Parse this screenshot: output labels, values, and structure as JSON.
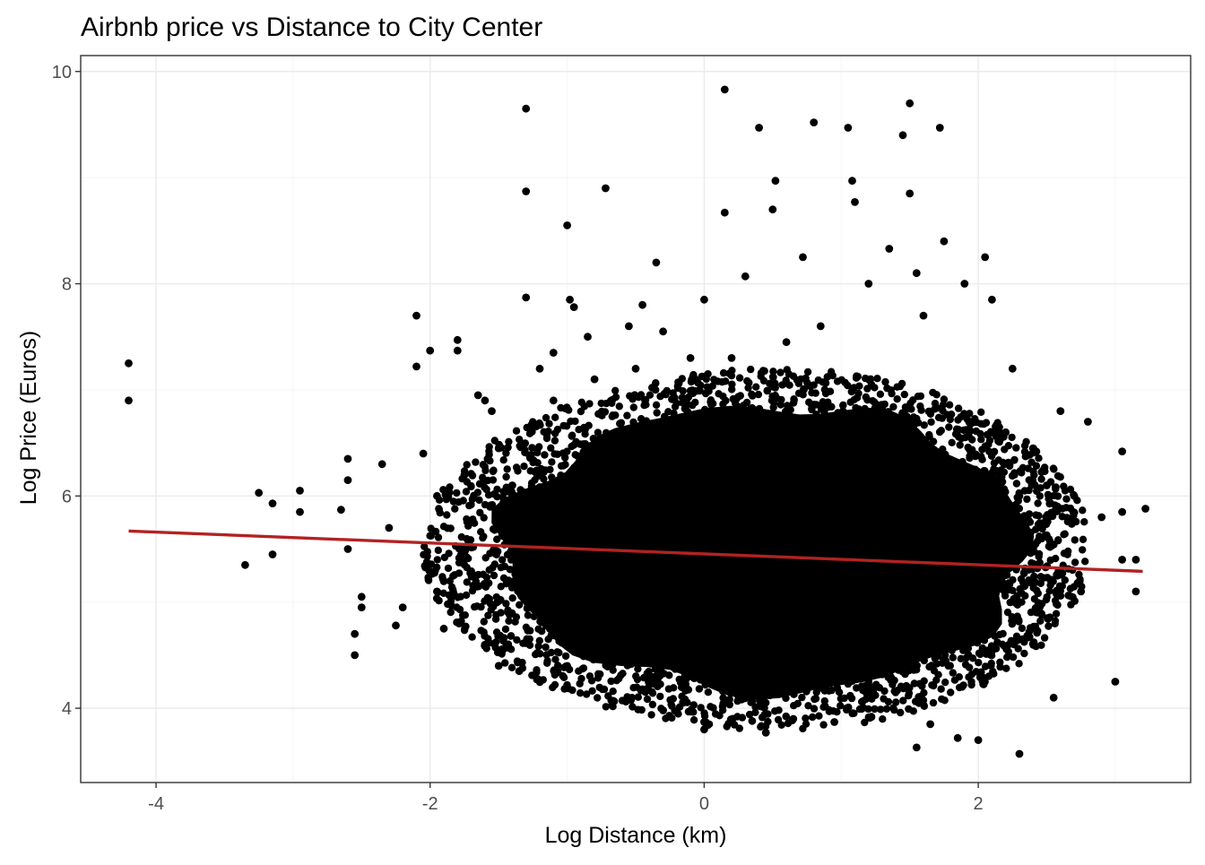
{
  "chart_data": {
    "type": "scatter",
    "title": "Airbnb price vs Distance to City Center",
    "xlabel": "Log Distance (km)",
    "ylabel": "Log Price (Euros)",
    "xlim": [
      -4.55,
      3.55
    ],
    "ylim": [
      3.3,
      10.15
    ],
    "x_ticks": [
      -4,
      -2,
      0,
      2
    ],
    "x_tick_labels": [
      "-4",
      "-2",
      "0",
      "2"
    ],
    "y_ticks": [
      4,
      6,
      8,
      10
    ],
    "y_tick_labels": [
      "4",
      "6",
      "8",
      "10"
    ],
    "grid": true,
    "legend": "none",
    "point_color": "#000000",
    "fit_line_color": "#b22222",
    "fit_line": {
      "x": [
        -4.2,
        3.2
      ],
      "y": [
        5.67,
        5.29
      ]
    },
    "cluster": {
      "center_x": 0.95,
      "center_y": 5.5,
      "x_range": [
        -1.6,
        2.5
      ],
      "y_range": [
        4.0,
        7.0
      ]
    },
    "points": [
      [
        -4.2,
        7.25
      ],
      [
        -4.2,
        6.9
      ],
      [
        -3.35,
        5.35
      ],
      [
        -3.25,
        6.03
      ],
      [
        -3.15,
        5.45
      ],
      [
        -3.15,
        5.93
      ],
      [
        -2.95,
        6.05
      ],
      [
        -2.95,
        5.85
      ],
      [
        -2.65,
        5.87
      ],
      [
        -2.6,
        6.35
      ],
      [
        -2.6,
        6.15
      ],
      [
        -2.6,
        5.5
      ],
      [
        -2.55,
        4.5
      ],
      [
        -2.55,
        4.7
      ],
      [
        -2.5,
        5.05
      ],
      [
        -2.5,
        4.95
      ],
      [
        -2.35,
        6.3
      ],
      [
        -2.3,
        5.7
      ],
      [
        -2.25,
        4.78
      ],
      [
        -2.2,
        4.95
      ],
      [
        -2.1,
        7.7
      ],
      [
        -2.1,
        7.22
      ],
      [
        -2.05,
        6.4
      ],
      [
        -2.0,
        7.37
      ],
      [
        -1.95,
        6.0
      ],
      [
        -1.95,
        5.1
      ],
      [
        -1.9,
        4.75
      ],
      [
        -1.8,
        7.47
      ],
      [
        -1.8,
        7.37
      ],
      [
        -1.75,
        6.2
      ],
      [
        -1.65,
        6.95
      ],
      [
        -1.6,
        6.9
      ],
      [
        -1.55,
        6.8
      ],
      [
        -1.5,
        6.45
      ],
      [
        -1.5,
        4.4
      ],
      [
        -1.4,
        6.1
      ],
      [
        -1.35,
        4.35
      ],
      [
        -1.3,
        9.65
      ],
      [
        -1.3,
        8.87
      ],
      [
        -1.3,
        7.87
      ],
      [
        -1.2,
        7.2
      ],
      [
        -1.1,
        7.35
      ],
      [
        -1.1,
        6.9
      ],
      [
        -1.0,
        8.55
      ],
      [
        -0.98,
        7.85
      ],
      [
        -0.95,
        7.78
      ],
      [
        -0.85,
        7.5
      ],
      [
        -0.8,
        7.1
      ],
      [
        -0.72,
        8.9
      ],
      [
        -0.55,
        7.6
      ],
      [
        -0.5,
        7.2
      ],
      [
        -0.45,
        7.8
      ],
      [
        -0.35,
        8.2
      ],
      [
        -0.3,
        7.55
      ],
      [
        -0.3,
        3.98
      ],
      [
        -0.1,
        7.3
      ],
      [
        0.0,
        7.85
      ],
      [
        0.0,
        3.8
      ],
      [
        0.0,
        3.87
      ],
      [
        0.15,
        9.83
      ],
      [
        0.15,
        8.67
      ],
      [
        0.2,
        7.3
      ],
      [
        0.3,
        8.07
      ],
      [
        0.35,
        3.88
      ],
      [
        0.4,
        9.47
      ],
      [
        0.45,
        3.77
      ],
      [
        0.5,
        8.7
      ],
      [
        0.52,
        8.97
      ],
      [
        0.6,
        7.45
      ],
      [
        0.65,
        3.9
      ],
      [
        0.72,
        8.25
      ],
      [
        0.8,
        9.52
      ],
      [
        0.85,
        7.6
      ],
      [
        0.95,
        3.87
      ],
      [
        1.05,
        9.47
      ],
      [
        1.08,
        8.97
      ],
      [
        1.1,
        8.77
      ],
      [
        1.2,
        8.0
      ],
      [
        1.35,
        8.33
      ],
      [
        1.45,
        9.4
      ],
      [
        1.5,
        9.7
      ],
      [
        1.5,
        8.85
      ],
      [
        1.55,
        8.1
      ],
      [
        1.55,
        3.63
      ],
      [
        1.6,
        7.7
      ],
      [
        1.65,
        3.85
      ],
      [
        1.72,
        9.47
      ],
      [
        1.75,
        8.4
      ],
      [
        1.85,
        3.72
      ],
      [
        1.9,
        8.0
      ],
      [
        2.0,
        3.7
      ],
      [
        2.05,
        8.25
      ],
      [
        2.1,
        7.85
      ],
      [
        2.2,
        6.6
      ],
      [
        2.25,
        7.2
      ],
      [
        2.3,
        3.57
      ],
      [
        2.4,
        6.45
      ],
      [
        2.5,
        6.1
      ],
      [
        2.55,
        4.1
      ],
      [
        2.6,
        6.8
      ],
      [
        2.7,
        6.0
      ],
      [
        2.75,
        5.1
      ],
      [
        2.8,
        6.7
      ],
      [
        2.9,
        5.8
      ],
      [
        3.0,
        4.25
      ],
      [
        3.05,
        5.4
      ],
      [
        3.05,
        6.42
      ],
      [
        3.05,
        5.85
      ],
      [
        3.15,
        5.1
      ],
      [
        3.15,
        5.4
      ],
      [
        3.22,
        5.88
      ]
    ]
  }
}
